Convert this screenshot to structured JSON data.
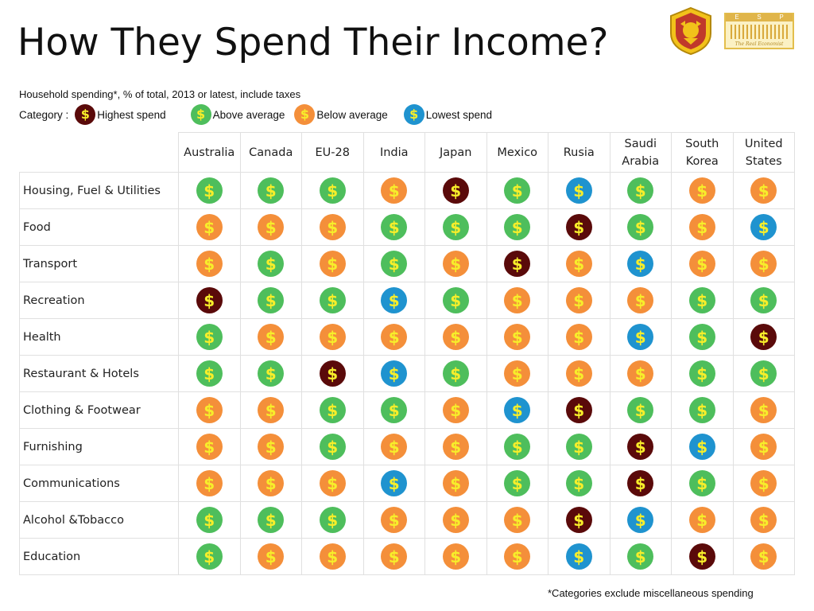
{
  "page": {
    "title": "How They Spend Their Income?",
    "subtitle": "Household spending*, % of total, 2013 or latest, include taxes",
    "footnote": "*Categories exclude miscellaneous spending"
  },
  "legend": {
    "label": "Category :",
    "items": [
      {
        "key": "highest",
        "label": "Highest spend",
        "color": "#5a0a0a"
      },
      {
        "key": "above",
        "label": "Above average",
        "color": "#4ebe5c"
      },
      {
        "key": "below",
        "label": "Below average",
        "color": "#f48f3a"
      },
      {
        "key": "lowest",
        "label": "Lowest spend",
        "color": "#1f93cf"
      }
    ]
  },
  "coin_symbol": "$",
  "chart_data": {
    "type": "table",
    "columns": [
      [
        "Australia"
      ],
      [
        "Canada"
      ],
      [
        "EU-28"
      ],
      [
        "India"
      ],
      [
        "Japan"
      ],
      [
        "Mexico"
      ],
      [
        "Rusia"
      ],
      [
        "Saudi",
        "Arabia"
      ],
      [
        "South",
        "Korea"
      ],
      [
        "United",
        "States"
      ]
    ],
    "rows": [
      {
        "label": "Housing, Fuel & Utilities",
        "values": [
          "above",
          "above",
          "above",
          "below",
          "highest",
          "above",
          "lowest",
          "above",
          "below",
          "below"
        ]
      },
      {
        "label": "Food",
        "values": [
          "below",
          "below",
          "below",
          "above",
          "above",
          "above",
          "highest",
          "above",
          "below",
          "lowest"
        ]
      },
      {
        "label": "Transport",
        "values": [
          "below",
          "above",
          "below",
          "above",
          "below",
          "highest",
          "below",
          "lowest",
          "below",
          "below"
        ]
      },
      {
        "label": "Recreation",
        "values": [
          "highest",
          "above",
          "above",
          "lowest",
          "above",
          "below",
          "below",
          "below",
          "above",
          "above"
        ]
      },
      {
        "label": "Health",
        "values": [
          "above",
          "below",
          "below",
          "below",
          "below",
          "below",
          "below",
          "lowest",
          "above",
          "highest"
        ]
      },
      {
        "label": "Restaurant & Hotels",
        "values": [
          "above",
          "above",
          "highest",
          "lowest",
          "above",
          "below",
          "below",
          "below",
          "above",
          "above"
        ]
      },
      {
        "label": "Clothing & Footwear",
        "values": [
          "below",
          "below",
          "above",
          "above",
          "below",
          "lowest",
          "highest",
          "above",
          "above",
          "below"
        ]
      },
      {
        "label": "Furnishing",
        "values": [
          "below",
          "below",
          "above",
          "below",
          "below",
          "above",
          "above",
          "highest",
          "lowest",
          "below"
        ]
      },
      {
        "label": "Communications",
        "values": [
          "below",
          "below",
          "below",
          "lowest",
          "below",
          "above",
          "above",
          "highest",
          "above",
          "below"
        ]
      },
      {
        "label": "Alcohol &Tobacco",
        "values": [
          "above",
          "above",
          "above",
          "below",
          "below",
          "below",
          "highest",
          "lowest",
          "below",
          "below"
        ]
      },
      {
        "label": "Education",
        "values": [
          "above",
          "below",
          "below",
          "below",
          "below",
          "below",
          "lowest",
          "above",
          "highest",
          "below"
        ]
      }
    ]
  }
}
